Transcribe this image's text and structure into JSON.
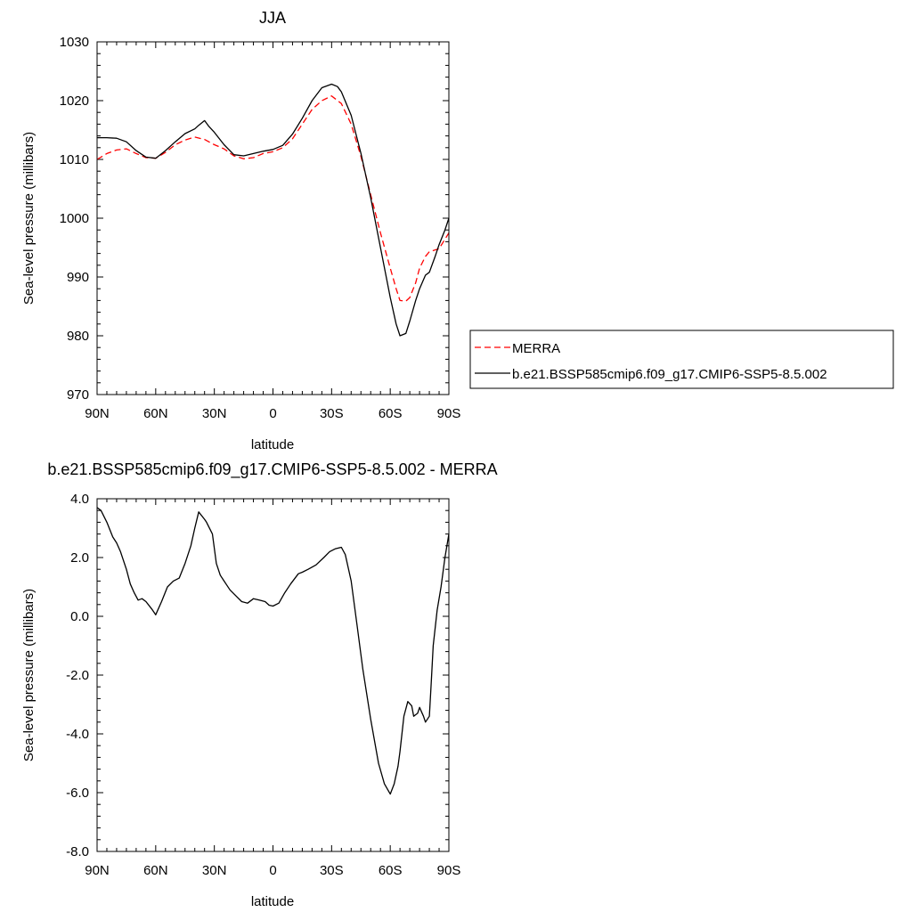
{
  "chart_data": [
    {
      "type": "line",
      "title": "JJA",
      "xlabel": "latitude",
      "ylabel": "Sea-level pressure (millibars)",
      "xlim": [
        90,
        -90
      ],
      "ylim": [
        970,
        1030
      ],
      "x_ticks": [
        90,
        60,
        30,
        0,
        -30,
        -60,
        -90
      ],
      "x_tick_labels": [
        "90N",
        "60N",
        "30N",
        "0",
        "30S",
        "60S",
        "90S"
      ],
      "y_ticks": [
        970,
        980,
        990,
        1000,
        1010,
        1020,
        1030
      ],
      "y_tick_labels": [
        "970",
        "980",
        "990",
        "1000",
        "1010",
        "1020",
        "1030"
      ],
      "grid": false,
      "legend_position": "right",
      "series": [
        {
          "name": "MERRA",
          "color": "#ff0000",
          "dash": "dashed",
          "x": [
            90,
            85,
            80,
            75,
            70,
            65,
            60,
            55,
            50,
            45,
            40,
            35,
            30,
            25,
            20,
            15,
            10,
            5,
            0,
            -5,
            -10,
            -15,
            -20,
            -25,
            -30,
            -35,
            -40,
            -45,
            -50,
            -55,
            -60,
            -63,
            -65,
            -68,
            -70,
            -73,
            -75,
            -78,
            -80,
            -85,
            -90
          ],
          "y": [
            1010.0,
            1011.0,
            1011.6,
            1011.8,
            1011.0,
            1010.3,
            1010.2,
            1011.2,
            1012.5,
            1013.3,
            1013.8,
            1013.4,
            1012.5,
            1011.8,
            1010.6,
            1010.1,
            1010.3,
            1011.0,
            1011.3,
            1012.0,
            1013.5,
            1016.0,
            1018.5,
            1020.0,
            1020.8,
            1019.5,
            1016.0,
            1010.5,
            1004.0,
            997.5,
            991.5,
            988.0,
            986.0,
            985.9,
            986.5,
            989.0,
            991.5,
            993.5,
            994.3,
            994.8,
            997.5
          ]
        },
        {
          "name": "b.e21.BSSP585cmip6.f09_g17.CMIP6-SSP5-8.5.002",
          "color": "#000000",
          "dash": "solid",
          "x": [
            90,
            85,
            80,
            75,
            70,
            65,
            60,
            55,
            50,
            45,
            40,
            38,
            35,
            33,
            30,
            25,
            20,
            15,
            10,
            5,
            0,
            -5,
            -10,
            -15,
            -20,
            -25,
            -30,
            -33,
            -35,
            -40,
            -45,
            -50,
            -55,
            -60,
            -63,
            -65,
            -68,
            -70,
            -73,
            -75,
            -78,
            -80,
            -83,
            -85,
            -88,
            -90
          ],
          "y": [
            1013.7,
            1013.7,
            1013.6,
            1013.0,
            1011.5,
            1010.4,
            1010.2,
            1011.5,
            1013.0,
            1014.4,
            1015.2,
            1015.8,
            1016.6,
            1015.7,
            1014.6,
            1012.5,
            1010.8,
            1010.6,
            1011.0,
            1011.4,
            1011.7,
            1012.4,
            1014.3,
            1017.0,
            1020.0,
            1022.2,
            1022.8,
            1022.4,
            1021.5,
            1017.5,
            1011.0,
            1003.5,
            995.0,
            986.5,
            982.0,
            980.0,
            980.4,
            982.5,
            986.0,
            988.0,
            990.3,
            990.8,
            993.5,
            995.5,
            998.0,
            1000.0
          ]
        }
      ]
    },
    {
      "type": "line",
      "title": "b.e21.BSSP585cmip6.f09_g17.CMIP6-SSP5-8.5.002 - MERRA",
      "xlabel": "latitude",
      "ylabel": "Sea-level pressure (millibars)",
      "xlim": [
        90,
        -90
      ],
      "ylim": [
        -8,
        4
      ],
      "x_ticks": [
        90,
        60,
        30,
        0,
        -30,
        -60,
        -90
      ],
      "x_tick_labels": [
        "90N",
        "60N",
        "30N",
        "0",
        "30S",
        "60S",
        "90S"
      ],
      "y_ticks": [
        -8,
        -6,
        -4,
        -2,
        0,
        2,
        4
      ],
      "y_tick_labels": [
        "-8.0",
        "-6.0",
        "-4.0",
        "-2.0",
        "0.0",
        "2.0",
        "4.0"
      ],
      "grid": false,
      "series": [
        {
          "color": "#000000",
          "dash": "solid",
          "x": [
            90,
            88,
            85,
            82,
            80,
            78,
            75,
            73,
            71,
            69,
            67,
            65,
            62,
            60,
            57,
            54,
            51,
            48,
            45,
            42,
            40,
            38,
            35,
            34,
            31,
            29,
            27,
            25,
            22,
            19,
            16,
            13,
            10,
            7,
            4,
            2,
            0,
            -3,
            -6,
            -9,
            -13,
            -15,
            -18,
            -22,
            -26,
            -29,
            -32,
            -35,
            -37,
            -40,
            -43,
            -46,
            -50,
            -54,
            -57,
            -60,
            -62,
            -64,
            -65,
            -66,
            -67,
            -69,
            -71,
            -72,
            -73,
            -74,
            -75,
            -77,
            -78,
            -80,
            -81,
            -82,
            -84,
            -86,
            -88,
            -90
          ],
          "y": [
            3.7,
            3.6,
            3.2,
            2.7,
            2.5,
            2.2,
            1.6,
            1.1,
            0.8,
            0.55,
            0.6,
            0.5,
            0.25,
            0.05,
            0.5,
            1.0,
            1.2,
            1.3,
            1.8,
            2.4,
            3.0,
            3.55,
            3.3,
            3.2,
            2.8,
            1.8,
            1.4,
            1.2,
            0.9,
            0.7,
            0.5,
            0.45,
            0.6,
            0.55,
            0.5,
            0.38,
            0.35,
            0.45,
            0.8,
            1.1,
            1.45,
            1.5,
            1.6,
            1.75,
            2.0,
            2.2,
            2.3,
            2.35,
            2.1,
            1.2,
            -0.3,
            -1.8,
            -3.5,
            -5.0,
            -5.7,
            -6.05,
            -5.7,
            -5.1,
            -4.6,
            -4.0,
            -3.4,
            -2.9,
            -3.05,
            -3.4,
            -3.35,
            -3.3,
            -3.1,
            -3.4,
            -3.6,
            -3.4,
            -2.2,
            -1.0,
            0.2,
            1.0,
            2.0,
            2.8
          ]
        }
      ]
    }
  ]
}
